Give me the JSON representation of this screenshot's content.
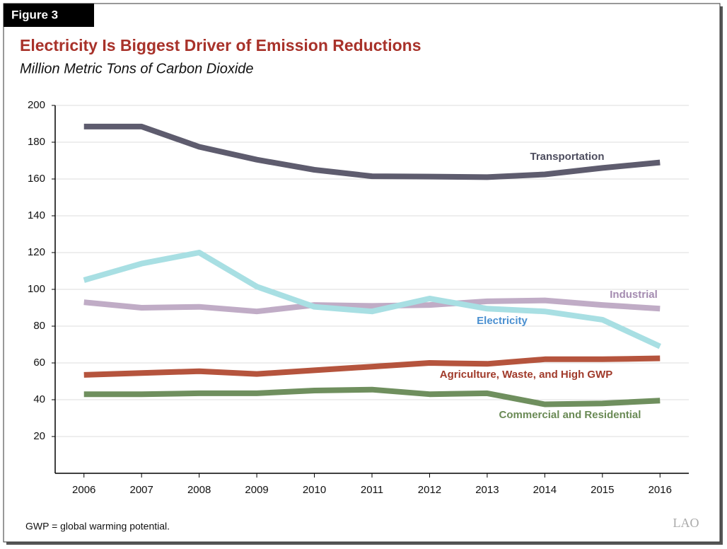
{
  "figure_label": "Figure 3",
  "footnote": "GWP = global warming potential.",
  "logo": "LAO",
  "chart_data": {
    "type": "line",
    "title": "Electricity Is Biggest Driver of Emission Reductions",
    "subtitle": "Million Metric Tons of Carbon Dioxide",
    "x": [
      2006,
      2007,
      2008,
      2009,
      2010,
      2011,
      2012,
      2013,
      2014,
      2015,
      2016
    ],
    "xlim": [
      2005.5,
      2016.5
    ],
    "xticks": [
      2006,
      2007,
      2008,
      2009,
      2010,
      2011,
      2012,
      2013,
      2014,
      2015,
      2016
    ],
    "ylim": [
      0,
      200
    ],
    "yticks": [
      20,
      40,
      60,
      80,
      100,
      120,
      140,
      160,
      180,
      200
    ],
    "grid": true,
    "series": [
      {
        "name": "Transportation",
        "color": "#5e5c6e",
        "label_color": "#4d4d5e",
        "values": [
          188.5,
          188.5,
          177.5,
          170.5,
          165,
          161.5,
          161.3,
          161,
          162.5,
          166,
          169
        ]
      },
      {
        "name": "Industrial",
        "color": "#c0acc6",
        "label_color": "#a48bb0",
        "values": [
          93,
          90,
          90.5,
          88,
          91.5,
          91,
          91.5,
          93.5,
          94,
          91.5,
          89.5
        ]
      },
      {
        "name": "Electricity",
        "color": "#a8dfe3",
        "label_color": "#4a8fd0",
        "values": [
          105,
          114,
          120,
          101.5,
          90.5,
          88,
          95,
          89.5,
          88,
          83.5,
          69
        ]
      },
      {
        "name": "Agriculture, Waste, and High GWP",
        "color": "#b5543d",
        "label_color": "#a03a2a",
        "values": [
          53.5,
          54.5,
          55.5,
          54,
          56,
          58,
          60,
          59.5,
          62,
          62,
          62.5
        ]
      },
      {
        "name": "Commercial and Residential",
        "color": "#6f8f5e",
        "label_color": "#6a8a55",
        "values": [
          43,
          43,
          43.5,
          43.5,
          45,
          45.5,
          43,
          43.5,
          37.5,
          38,
          39.5
        ]
      }
    ]
  }
}
